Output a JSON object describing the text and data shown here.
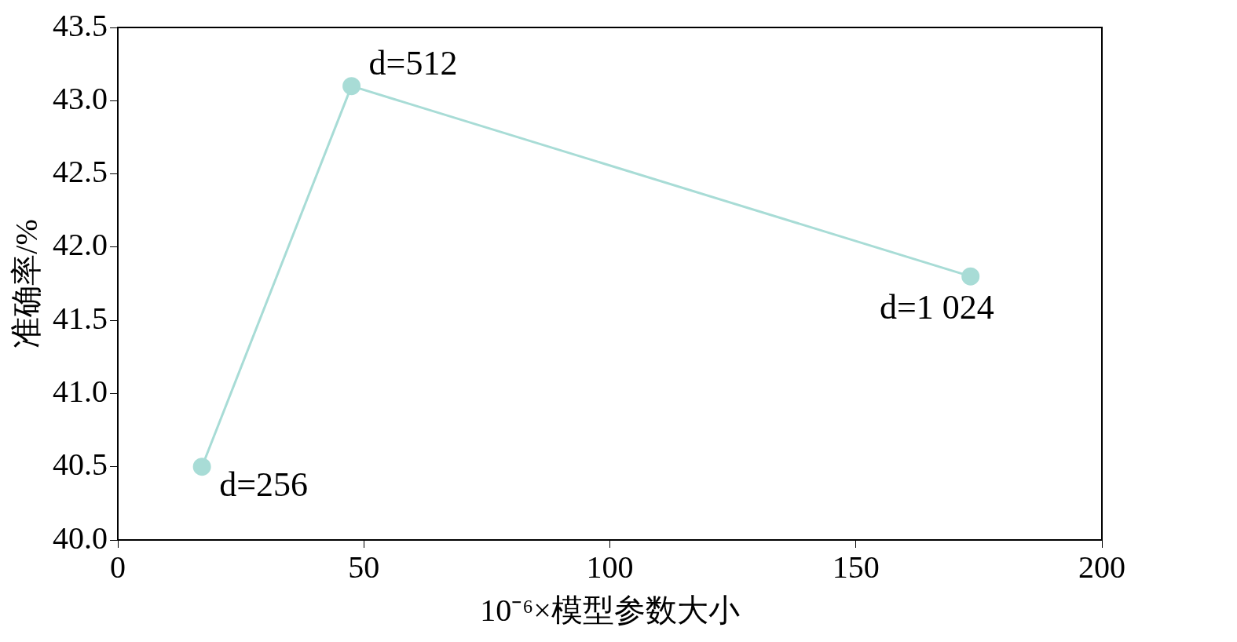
{
  "chart_data": {
    "type": "line",
    "xlabel": "10⁻⁶×模型参数大小",
    "ylabel": "准确率/%",
    "x": [
      17.1,
      47.5,
      173.3
    ],
    "series": [
      {
        "color": "#a8dcd6",
        "values": [
          40.5,
          43.1,
          41.8
        ]
      }
    ],
    "marker": "circle",
    "line_style": "solid",
    "grid": false,
    "legend": false,
    "xlim": [
      0,
      200
    ],
    "xticks": [
      0,
      50,
      100,
      150,
      200
    ],
    "ylim": [
      40,
      43.5
    ],
    "yticks": [
      {
        "value": 40,
        "label": "40.0"
      },
      {
        "value": 40.5,
        "label": "40.5"
      },
      {
        "value": 41,
        "label": "41.0"
      },
      {
        "value": 41.5,
        "label": "41.5"
      },
      {
        "value": 42,
        "label": "42.0"
      },
      {
        "value": 42.5,
        "label": "42.5"
      },
      {
        "value": 43,
        "label": "43.0"
      },
      {
        "value": 43.5,
        "label": "43.5"
      }
    ],
    "annotations": [
      {
        "text": "d=256",
        "x": 17.1,
        "y": 40.5
      },
      {
        "text": "d=512",
        "x": 47.5,
        "y": 43.1
      },
      {
        "text": "d=1 024",
        "x": 173.3,
        "y": 41.8
      }
    ]
  }
}
